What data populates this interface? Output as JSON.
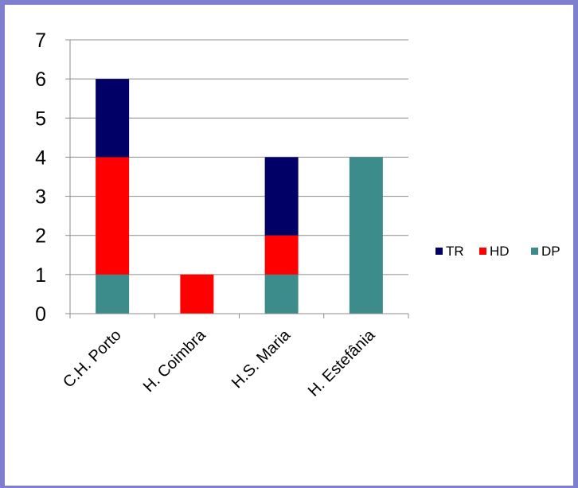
{
  "chart_data": {
    "type": "bar",
    "stacked": true,
    "categories": [
      "C.H. Porto",
      "H. Coimbra",
      "H.S. Maria",
      "H. Estefânia"
    ],
    "series": [
      {
        "name": "DP",
        "values": [
          1,
          0,
          1,
          4
        ],
        "color": "#3c8c8c"
      },
      {
        "name": "HD",
        "values": [
          3,
          1,
          1,
          0
        ],
        "color": "#ff0000"
      },
      {
        "name": "TR",
        "values": [
          2,
          0,
          2,
          0
        ],
        "color": "#000066"
      }
    ],
    "legend_order": [
      "TR",
      "HD",
      "DP"
    ],
    "ylim": [
      0,
      7
    ],
    "yticks": [
      "0",
      "1",
      "2",
      "3",
      "4",
      "5",
      "6",
      "7"
    ],
    "grid": true,
    "legend_position": "right",
    "frame_color": "#7f7fcf"
  }
}
